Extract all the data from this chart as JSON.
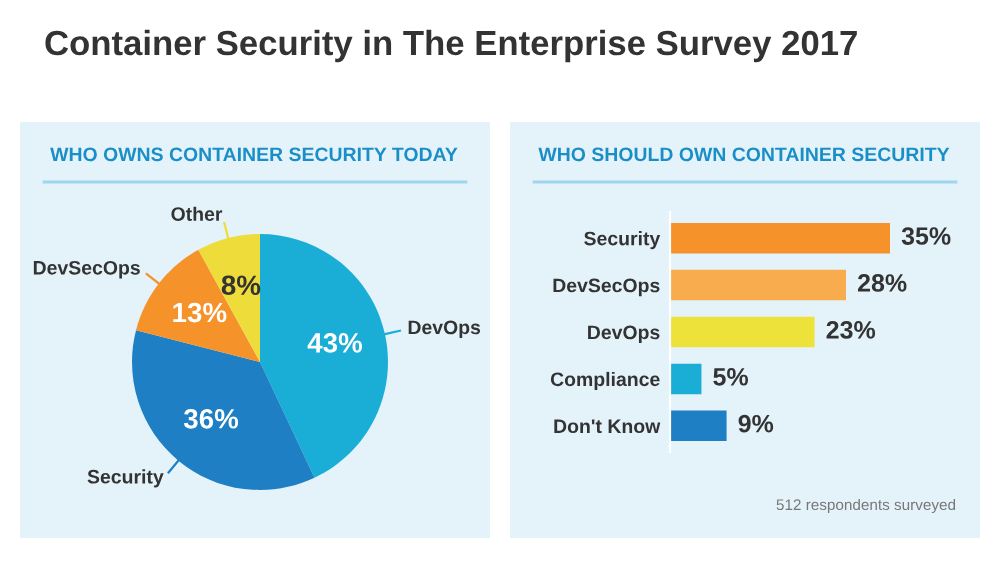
{
  "chart_data": [
    {
      "type": "pie",
      "title": "Container Security in The Enterprise Survey 2017",
      "subtitle": "WHO OWNS CONTAINER SECURITY TODAY",
      "categories": [
        "DevOps",
        "Security",
        "DevSecOps",
        "Other"
      ],
      "values": [
        43,
        36,
        13,
        8
      ],
      "colors": [
        "#1aaed6",
        "#1e7fc4",
        "#f5922a",
        "#eedc3a"
      ],
      "value_labels": [
        "43%",
        "36%",
        "13%",
        "8%"
      ]
    },
    {
      "type": "bar",
      "orientation": "horizontal",
      "title": "WHO SHOULD OWN CONTAINER SECURITY",
      "categories": [
        "Security",
        "DevSecOps",
        "DevOps",
        "Compliance",
        "Don't Know"
      ],
      "values": [
        35,
        28,
        23,
        5,
        9
      ],
      "colors": [
        "#f5922a",
        "#f8ac4e",
        "#ede23a",
        "#1aaed6",
        "#1e7fc4"
      ],
      "value_labels": [
        "35%",
        "28%",
        "23%",
        "5%",
        "9%"
      ],
      "annotations": [
        "512 respondents surveyed"
      ],
      "grid": false
    }
  ]
}
